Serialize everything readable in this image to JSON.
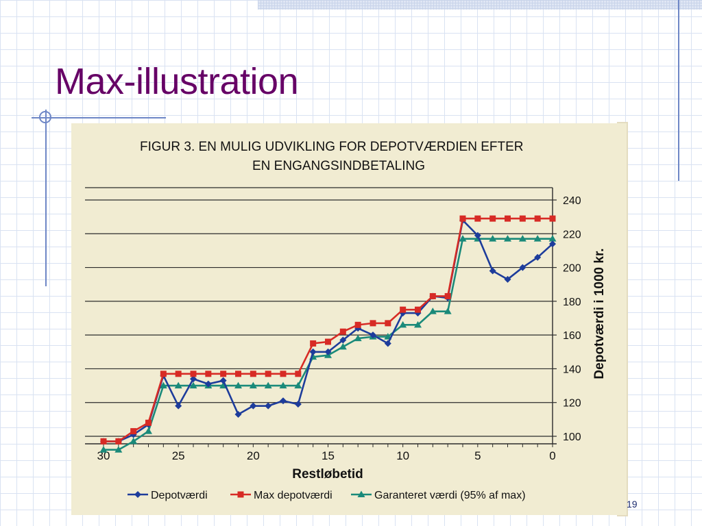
{
  "slide": {
    "title": "Max-illustration",
    "page_number": "19"
  },
  "figure": {
    "title_line1": "FIGUR 3. EN MULIG UDVIKLING FOR DEPOTVÆRDIEN EFTER",
    "title_line2": "EN ENGANGSINDBETALING"
  },
  "chart_data": {
    "type": "line",
    "title": "FIGUR 3. EN MULIG UDVIKLING FOR DEPOTVÆRDIEN EFTER EN ENGANGSINDBETALING",
    "xlabel": "Restløbetid",
    "ylabel": "Depotværdi i 1000 kr.",
    "xlim": [
      30.5,
      0
    ],
    "ylim": [
      100,
      240
    ],
    "x_ticks": [
      30,
      25,
      20,
      15,
      10,
      5,
      0
    ],
    "y_ticks": [
      100,
      120,
      140,
      160,
      180,
      200,
      220,
      240
    ],
    "grid": "horizontal",
    "legend_position": "bottom",
    "x": [
      30,
      29,
      28,
      27,
      26,
      25,
      24,
      23,
      22,
      21,
      20,
      19,
      18,
      17,
      16,
      15,
      14,
      13,
      12,
      11,
      10,
      9,
      8,
      7,
      6,
      5,
      4,
      3,
      2,
      1,
      0
    ],
    "series": [
      {
        "name": "Depotværdi",
        "color": "#1d3c9b",
        "marker": "diamond",
        "values": [
          97,
          97,
          101,
          107,
          136,
          118,
          134,
          131,
          133,
          113,
          118,
          118,
          121,
          119,
          150,
          150,
          157,
          164,
          160,
          155,
          173,
          173,
          183,
          182,
          228,
          219,
          198,
          193,
          200,
          206,
          214
        ]
      },
      {
        "name": "Max depotværdi",
        "color": "#d72b25",
        "marker": "square",
        "values": [
          97,
          97,
          103,
          108,
          137,
          137,
          137,
          137,
          137,
          137,
          137,
          137,
          137,
          137,
          155,
          156,
          162,
          166,
          167,
          167,
          175,
          175,
          183,
          183,
          229,
          229,
          229,
          229,
          229,
          229,
          229
        ]
      },
      {
        "name": "Garanteret værdi (95% af max)",
        "color": "#1a8a7a",
        "marker": "triangle",
        "values": [
          92,
          92,
          97,
          103,
          130,
          130,
          130,
          130,
          130,
          130,
          130,
          130,
          130,
          130,
          147,
          148,
          153,
          158,
          159,
          159,
          166,
          166,
          174,
          174,
          217,
          217,
          217,
          217,
          217,
          217,
          217
        ]
      }
    ]
  }
}
